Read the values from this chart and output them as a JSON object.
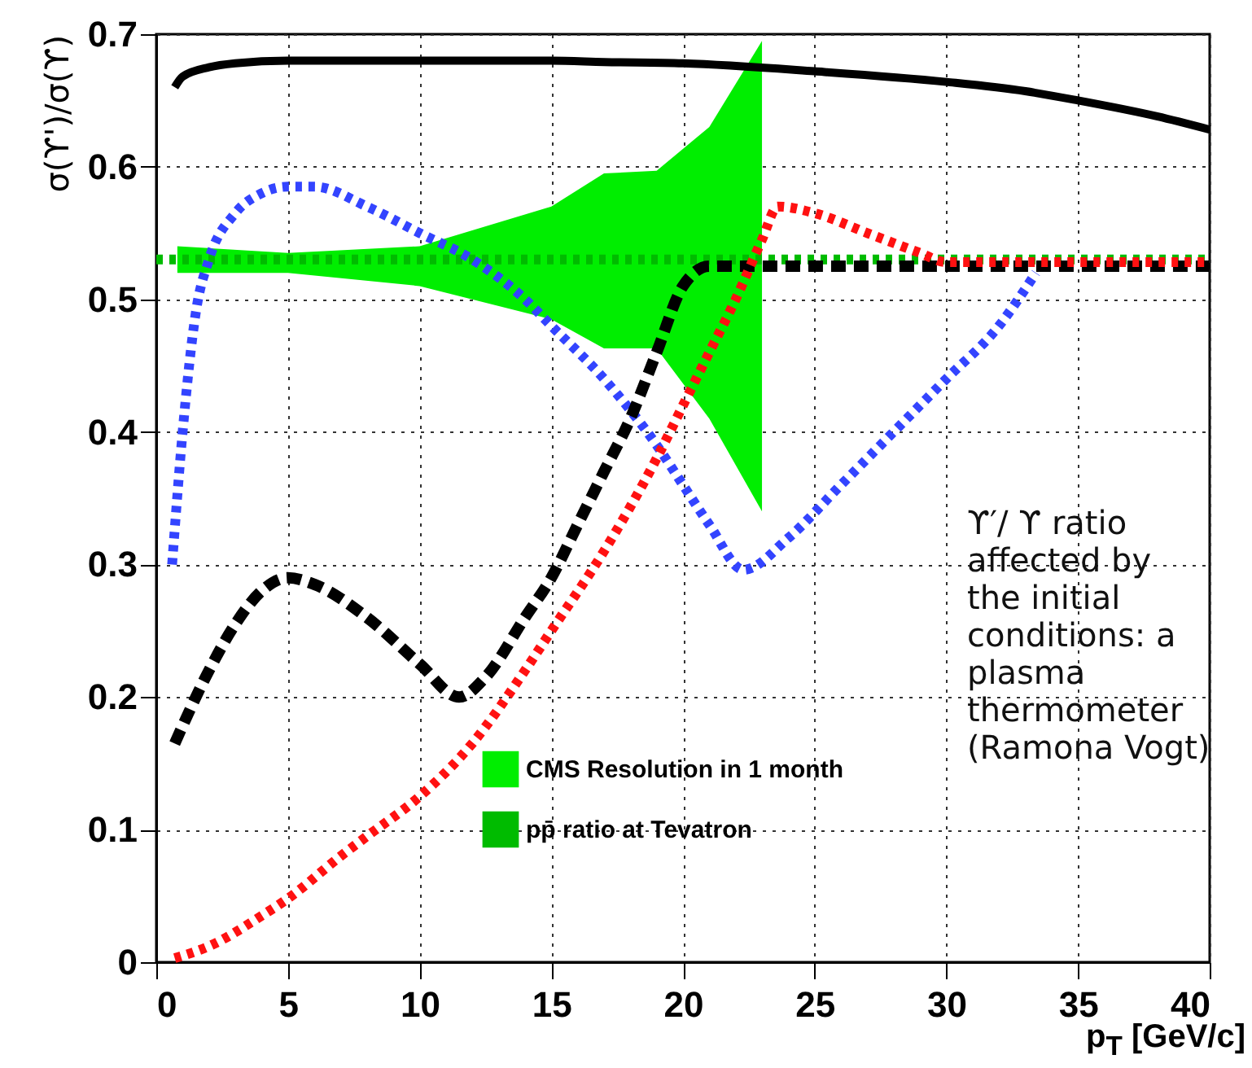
{
  "chart_data": {
    "type": "line",
    "xlabel": "p$_{T}$ [GeV/c]",
    "ylabel": "σ(ϒ')/σ(ϒ)",
    "xlim": [
      0,
      40
    ],
    "xticks": [
      0,
      5,
      10,
      15,
      20,
      25,
      30,
      35,
      40
    ],
    "ylim": [
      0,
      0.7
    ],
    "yticks": [
      0,
      0.1,
      0.2,
      0.3,
      0.4,
      0.5,
      0.6,
      0.7
    ],
    "grid": true,
    "legend": "bottom",
    "annotations": [
      "ϒ′/ ϒ ratio affected by the initial conditions: a plasma thermometer (Ramona Vogt)"
    ],
    "series": [
      {
        "name": "CMS Resolution in 1 month",
        "color": "#00ee00",
        "line_style": "solid",
        "x": [
          0.8,
          5,
          10,
          15,
          17,
          19,
          21,
          23
        ],
        "values": [
          null,
          null,
          null,
          null,
          null,
          null,
          null,
          null
        ],
        "lower": [
          0.52,
          0.52,
          0.51,
          0.485,
          0.463,
          0.463,
          0.41,
          0.34
        ],
        "upper": [
          0.54,
          0.535,
          0.54,
          0.57,
          0.595,
          0.597,
          0.63,
          0.695
        ]
      },
      {
        "name": "pp̄ ratio at Tevatron",
        "color": "#00bb00",
        "line_style": "dotted",
        "x": [
          0,
          40
        ],
        "values": [
          0.53,
          0.53
        ]
      },
      {
        "color": "#000000",
        "line_style": "solid",
        "x": [
          0.7,
          1,
          2,
          3,
          5,
          10,
          15,
          17,
          20,
          25,
          30,
          33,
          35,
          38,
          40
        ],
        "values": [
          0.66,
          0.668,
          0.675,
          0.678,
          0.68,
          0.68,
          0.68,
          0.679,
          0.678,
          0.672,
          0.664,
          0.657,
          0.65,
          0.638,
          0.628
        ]
      },
      {
        "color": "#3344ff",
        "line_style": "dotted",
        "x": [
          0.6,
          1,
          1.5,
          2,
          3,
          4,
          5,
          6,
          8,
          10,
          12,
          14,
          15,
          17,
          19,
          20,
          21,
          22.3,
          24,
          26,
          28,
          30,
          32,
          33.4
        ],
        "values": [
          0.3,
          0.4,
          0.49,
          0.53,
          0.565,
          0.58,
          0.585,
          0.585,
          0.57,
          0.55,
          0.53,
          0.5,
          0.48,
          0.44,
          0.39,
          0.36,
          0.33,
          0.296,
          0.32,
          0.36,
          0.4,
          0.44,
          0.48,
          0.52
        ]
      },
      {
        "color": "#000000",
        "line_style": "dashed",
        "x": [
          0.7,
          2,
          3,
          4,
          5,
          6,
          8,
          10,
          11.5,
          12.5,
          14,
          15,
          16,
          17,
          18,
          19,
          20,
          21,
          25,
          30,
          35,
          40
        ],
        "values": [
          0.165,
          0.22,
          0.255,
          0.28,
          0.29,
          0.285,
          0.26,
          0.225,
          0.2,
          0.215,
          0.26,
          0.29,
          0.33,
          0.37,
          0.41,
          0.46,
          0.51,
          0.525,
          0.525,
          0.525,
          0.525,
          0.525
        ]
      },
      {
        "color": "#ff1111",
        "line_style": "dotted",
        "x": [
          0.7,
          2,
          4,
          5,
          7,
          8,
          10,
          12,
          14,
          15,
          17,
          19,
          20,
          21,
          22,
          23,
          23.6,
          25,
          27,
          29,
          30,
          35,
          40
        ],
        "values": [
          0.003,
          0.012,
          0.035,
          0.048,
          0.08,
          0.095,
          0.125,
          0.165,
          0.22,
          0.25,
          0.31,
          0.38,
          0.42,
          0.46,
          0.5,
          0.545,
          0.57,
          0.565,
          0.55,
          0.535,
          0.528,
          0.528,
          0.528
        ]
      }
    ]
  }
}
